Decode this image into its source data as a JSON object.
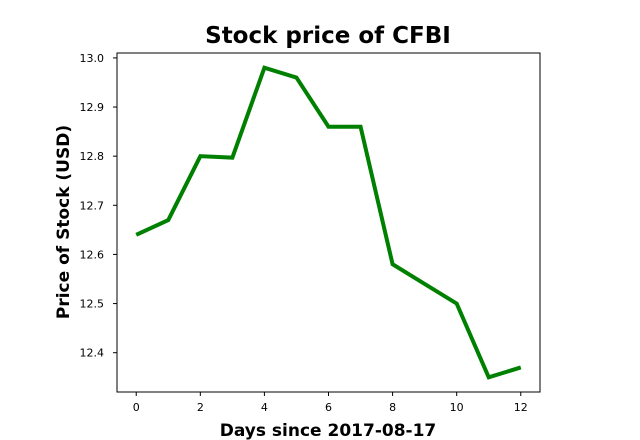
{
  "chart_data": {
    "type": "line",
    "title": "Stock price of CFBI",
    "xlabel": "Days since 2017-08-17",
    "ylabel": "Price of Stock (USD)",
    "xlim": [
      -0.6,
      12.6
    ],
    "ylim": [
      12.32,
      13.01
    ],
    "xticks": [
      0,
      2,
      4,
      6,
      8,
      10,
      12
    ],
    "yticks": [
      12.4,
      12.5,
      12.6,
      12.7,
      12.8,
      12.9,
      13.0
    ],
    "ytick_labels": [
      "12.4",
      "12.5",
      "12.6",
      "12.7",
      "12.8",
      "12.9",
      "13.0"
    ],
    "grid": false,
    "series": [
      {
        "color": "#008000",
        "x": [
          0,
          1,
          2,
          3,
          4,
          5,
          6,
          7,
          8,
          9,
          10,
          11,
          12
        ],
        "values": [
          12.64,
          12.67,
          12.8,
          12.797,
          12.98,
          12.96,
          12.86,
          12.86,
          12.58,
          12.54,
          12.5,
          12.35,
          12.37
        ]
      }
    ]
  }
}
